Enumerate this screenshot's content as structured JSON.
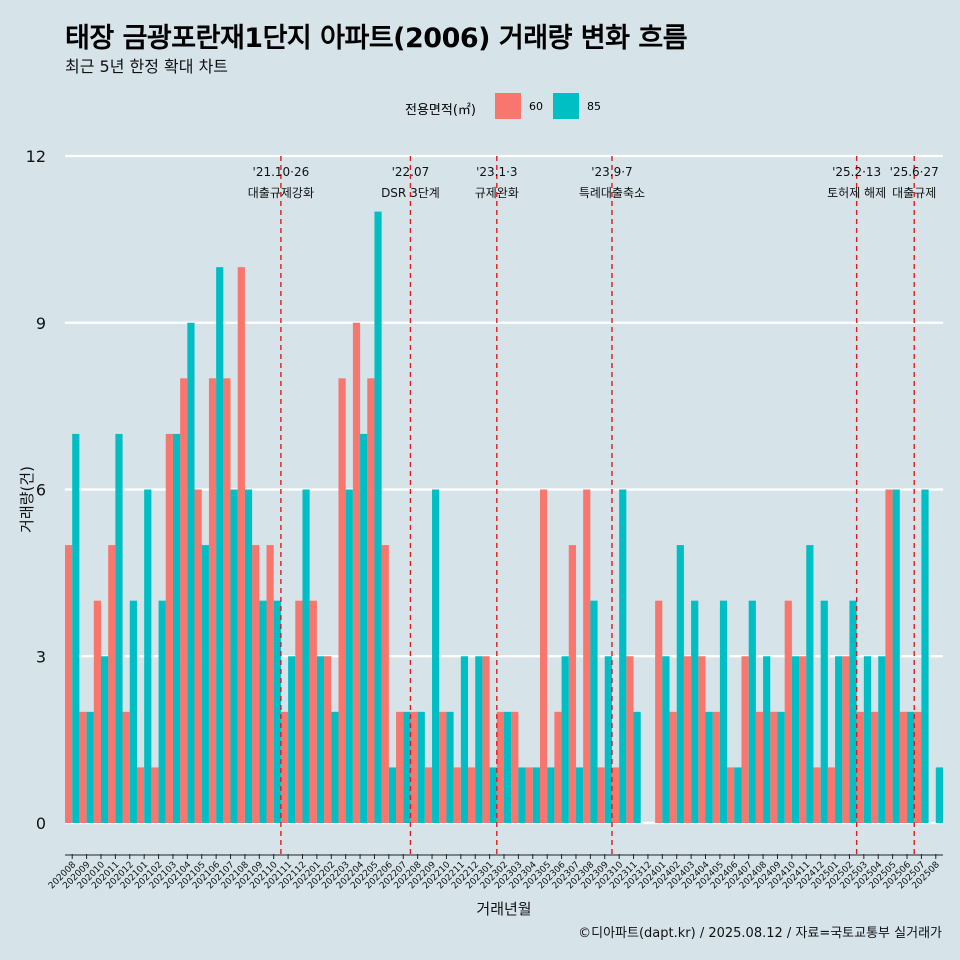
{
  "title": "태장 금광포란재1단지 아파트(2006) 거래량 변화 흐름",
  "subtitle": "최근 5년 한정 확대 차트",
  "legend": {
    "title": "전용면적(㎡)",
    "items": [
      {
        "label": "60",
        "color": "#f8766d"
      },
      {
        "label": "85",
        "color": "#00bfc4"
      }
    ]
  },
  "caption": "©디아파트(dapt.kr) / 2025.08.12 / 자료=국토교통부 실거래가",
  "chart_data": {
    "type": "bar",
    "title": "태장 금광포란재1단지 아파트(2006) 거래량 변화 흐름",
    "xlabel": "거래년월",
    "ylabel": "거래량(건)",
    "ylim": [
      0,
      12
    ],
    "yticks": [
      0,
      3,
      6,
      9,
      12
    ],
    "categories": [
      "202008",
      "202009",
      "202010",
      "202011",
      "202012",
      "202101",
      "202102",
      "202103",
      "202104",
      "202105",
      "202106",
      "202107",
      "202108",
      "202109",
      "202110",
      "202111",
      "202112",
      "202201",
      "202202",
      "202203",
      "202204",
      "202205",
      "202206",
      "202207",
      "202208",
      "202209",
      "202210",
      "202211",
      "202212",
      "202301",
      "202302",
      "202303",
      "202304",
      "202305",
      "202306",
      "202307",
      "202308",
      "202309",
      "202310",
      "202311",
      "202312",
      "202401",
      "202402",
      "202403",
      "202404",
      "202405",
      "202406",
      "202407",
      "202408",
      "202409",
      "202410",
      "202411",
      "202412",
      "202501",
      "202502",
      "202503",
      "202504",
      "202505",
      "202506",
      "202507",
      "202508"
    ],
    "series": [
      {
        "name": "60",
        "color": "#f8766d",
        "values": [
          5,
          2,
          4,
          5,
          2,
          1,
          1,
          7,
          8,
          6,
          8,
          8,
          10,
          5,
          5,
          2,
          4,
          4,
          3,
          8,
          9,
          8,
          5,
          2,
          2,
          1,
          2,
          1,
          1,
          3,
          2,
          2,
          1,
          6,
          2,
          5,
          6,
          1,
          1,
          3,
          0,
          4,
          2,
          3,
          3,
          2,
          1,
          3,
          2,
          2,
          4,
          3,
          1,
          1,
          3,
          2,
          2,
          6,
          2,
          2,
          0
        ]
      },
      {
        "name": "85",
        "color": "#00bfc4",
        "values": [
          7,
          2,
          3,
          7,
          4,
          6,
          4,
          7,
          9,
          5,
          10,
          6,
          6,
          4,
          4,
          3,
          6,
          3,
          2,
          6,
          7,
          11,
          1,
          2,
          2,
          6,
          2,
          3,
          3,
          1,
          2,
          1,
          1,
          1,
          3,
          1,
          4,
          3,
          6,
          2,
          0,
          3,
          5,
          4,
          2,
          4,
          1,
          4,
          3,
          2,
          3,
          5,
          4,
          3,
          4,
          3,
          3,
          6,
          2,
          6,
          1
        ]
      }
    ],
    "events": [
      {
        "after": "202110",
        "date": "'21.10·26",
        "label": "대출규제강화"
      },
      {
        "after": "202207",
        "date": "'22.07",
        "label": "DSR 3단계"
      },
      {
        "after": "202301",
        "date": "'23.1·3",
        "label": "규제완화"
      },
      {
        "after": "202309",
        "date": "'23.9·7",
        "label": "특례대출축소"
      },
      {
        "after": "202502",
        "date": "'25.2·13",
        "label": "토허제 해제"
      },
      {
        "after": "202506",
        "date": "'25.6·27",
        "label": "대출규제"
      }
    ]
  }
}
